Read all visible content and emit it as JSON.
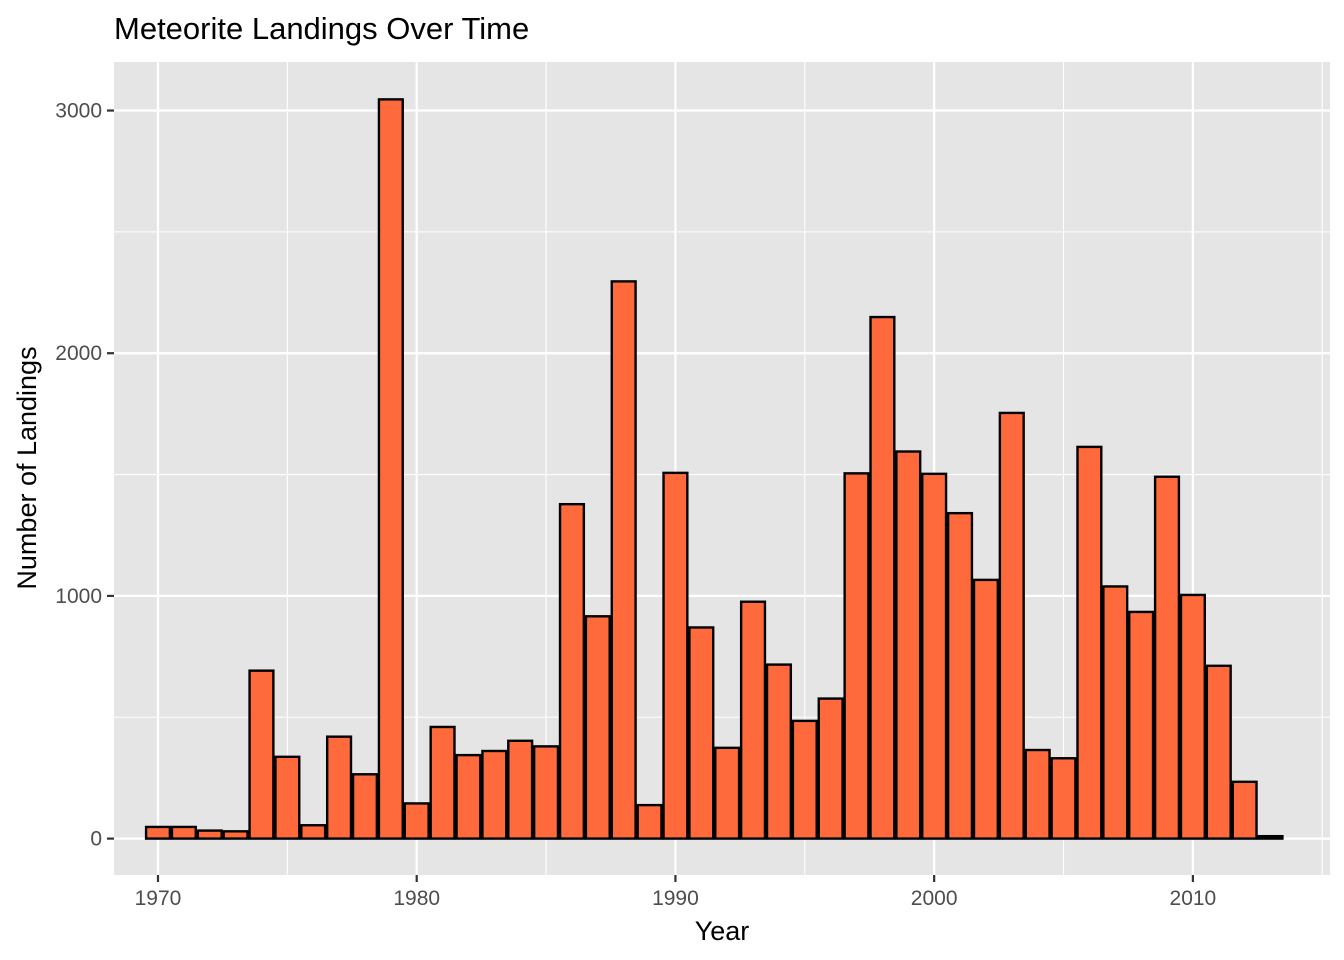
{
  "chart_data": {
    "type": "bar",
    "title": "Meteorite Landings Over Time",
    "xlabel": "Year",
    "ylabel": "Number of Landings",
    "xlim": [
      1968.3,
      1971.3
    ],
    "x_domain": [
      1968.3,
      2015.3
    ],
    "ylim": [
      -150,
      3200
    ],
    "x_ticks": [
      1970,
      1980,
      1990,
      2000,
      2010
    ],
    "x_tick_labels": [
      "1970",
      "1980",
      "1990",
      "2000",
      "2010"
    ],
    "y_ticks": [
      0,
      1000,
      2000,
      3000
    ],
    "y_tick_labels": [
      "0",
      "1000",
      "2000",
      "3000"
    ],
    "grid": true,
    "legend": "none",
    "colors": {
      "fill": "#FF6A3D",
      "outline": "#000000",
      "panel": "#E5E5E5",
      "grid": "#FFFFFF"
    },
    "x": [
      1970,
      1971,
      1972,
      1973,
      1974,
      1975,
      1976,
      1977,
      1978,
      1979,
      1980,
      1981,
      1982,
      1983,
      1984,
      1985,
      1986,
      1987,
      1988,
      1989,
      1990,
      1991,
      1992,
      1993,
      1994,
      1995,
      1996,
      1997,
      1998,
      1999,
      2000,
      2001,
      2002,
      2003,
      2004,
      2005,
      2006,
      2007,
      2008,
      2009,
      2010,
      2011,
      2012,
      2013
    ],
    "values": [
      48,
      48,
      33,
      30,
      692,
      337,
      55,
      420,
      265,
      3046,
      145,
      460,
      344,
      361,
      403,
      380,
      1378,
      916,
      2296,
      138,
      1507,
      870,
      374,
      976,
      717,
      485,
      577,
      1505,
      2149,
      1595,
      1503,
      1341,
      1066,
      1754,
      365,
      331,
      1614,
      1039,
      934,
      1491,
      1004,
      712,
      234,
      10
    ]
  }
}
